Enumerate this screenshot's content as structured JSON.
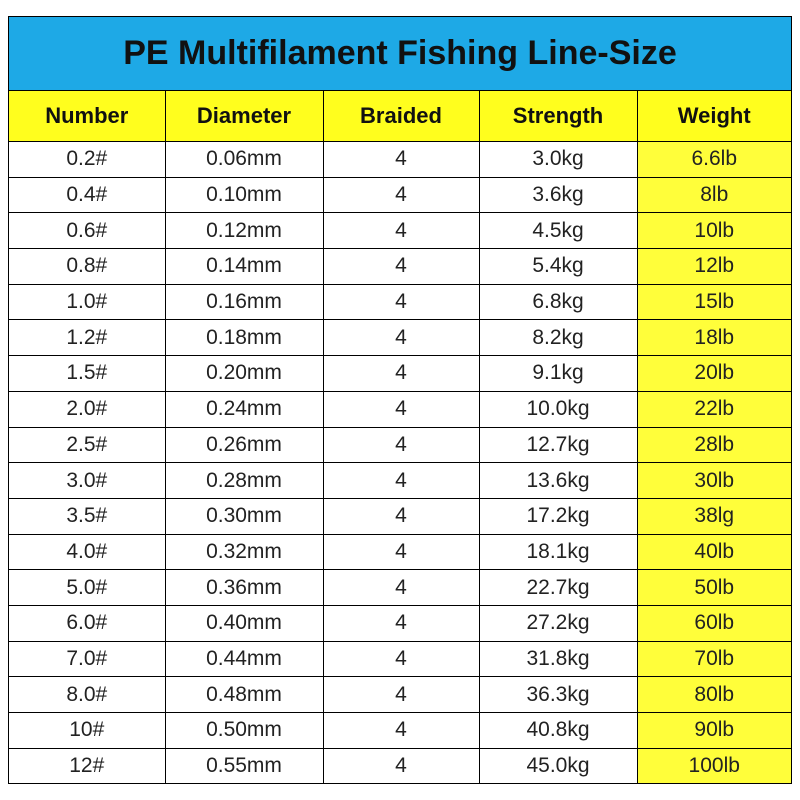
{
  "title": "PE Multifilament Fishing Line-Size",
  "colors": {
    "title_bg": "#1ea9e6",
    "header_bg": "#fffe1e",
    "weight_bg": "#fffe3a"
  },
  "headers": [
    "Number",
    "Diameter",
    "Braided",
    "Strength",
    "Weight"
  ],
  "rows": [
    [
      "0.2#",
      "0.06mm",
      "4",
      "3.0kg",
      "6.6lb"
    ],
    [
      "0.4#",
      "0.10mm",
      "4",
      "3.6kg",
      "8lb"
    ],
    [
      "0.6#",
      "0.12mm",
      "4",
      "4.5kg",
      "10lb"
    ],
    [
      "0.8#",
      "0.14mm",
      "4",
      "5.4kg",
      "12lb"
    ],
    [
      "1.0#",
      "0.16mm",
      "4",
      "6.8kg",
      "15lb"
    ],
    [
      "1.2#",
      "0.18mm",
      "4",
      "8.2kg",
      "18lb"
    ],
    [
      "1.5#",
      "0.20mm",
      "4",
      "9.1kg",
      "20lb"
    ],
    [
      "2.0#",
      "0.24mm",
      "4",
      "10.0kg",
      "22lb"
    ],
    [
      "2.5#",
      "0.26mm",
      "4",
      "12.7kg",
      "28lb"
    ],
    [
      "3.0#",
      "0.28mm",
      "4",
      "13.6kg",
      "30lb"
    ],
    [
      "3.5#",
      "0.30mm",
      "4",
      "17.2kg",
      "38lg"
    ],
    [
      "4.0#",
      "0.32mm",
      "4",
      "18.1kg",
      "40lb"
    ],
    [
      "5.0#",
      "0.36mm",
      "4",
      "22.7kg",
      "50lb"
    ],
    [
      "6.0#",
      "0.40mm",
      "4",
      "27.2kg",
      "60lb"
    ],
    [
      "7.0#",
      "0.44mm",
      "4",
      "31.8kg",
      "70lb"
    ],
    [
      "8.0#",
      "0.48mm",
      "4",
      "36.3kg",
      "80lb"
    ],
    [
      "10#",
      "0.50mm",
      "4",
      "40.8kg",
      "90lb"
    ],
    [
      "12#",
      "0.55mm",
      "4",
      "45.0kg",
      "100lb"
    ]
  ]
}
